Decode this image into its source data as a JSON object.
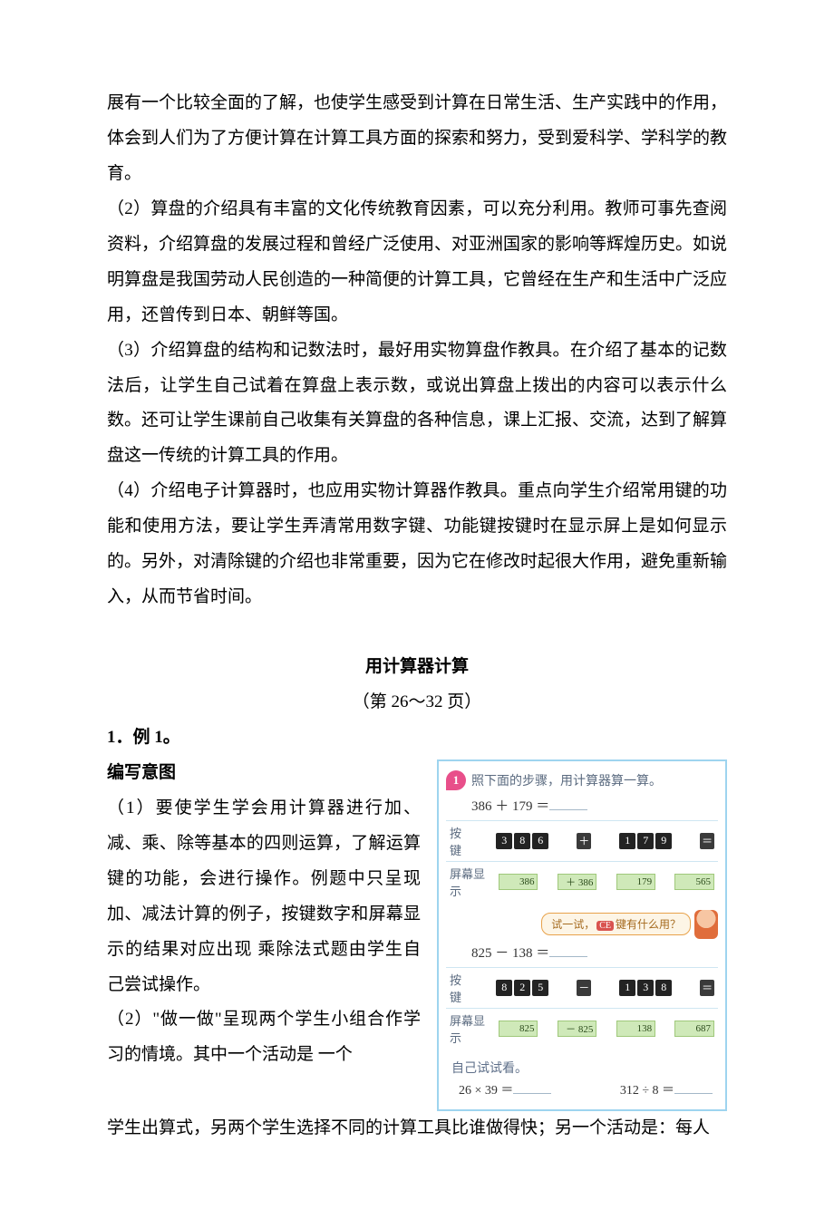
{
  "paragraphs": {
    "p1": "展有一个比较全面的了解，也使学生感受到计算在日常生活、生产实践中的作用，体会到人们为了方便计算在计算工具方面的探索和努力，受到爱科学、学科学的教育。",
    "p2": "（2）算盘的介绍具有丰富的文化传统教育因素，可以充分利用。教师可事先查阅资料，介绍算盘的发展过程和曾经广泛使用、对亚洲国家的影响等辉煌历史。如说明算盘是我国劳动人民创造的一种简便的计算工具，它曾经在生产和生活中广泛应用，还曾传到日本、朝鲜等国。",
    "p3": "（3）介绍算盘的结构和记数法时，最好用实物算盘作教具。在介绍了基本的记数法后，让学生自己试着在算盘上表示数，或说出算盘上拨出的内容可以表示什么数。还可让学生课前自己收集有关算盘的各种信息，课上汇报、交流，达到了解算盘这一传统的计算工具的作用。",
    "p4": "（4）介绍电子计算器时，也应用实物计算器作教具。重点向学生介绍常用键的功能和使用方法，要让学生弄清常用数字键、功能键按键时在显示屏上是如何显示的。另外，对清除键的介绍也非常重要，因为它在修改时起很大作用，避免重新输入，从而节省时间。"
  },
  "section": {
    "title": "用计算器计算",
    "subtitle": "（第 26～32 页）"
  },
  "example": {
    "heading": "1．例 1。",
    "subheading": "编写意图",
    "pA": "（1）要使学生学会用计算器进行加、减、乘、除等基本的四则运算，了解运算键的功能，会进行操作。例题中只呈现加、减法计算的例子，按键数字和屏幕显示的结果对应出现 乘除法式题由学生自己尝试操作。",
    "pB": "（2）\"做一做\"呈现两个学生小组合作学习的情境。其中一个活动是 一个",
    "pC": "学生出算式，另两个学生选择不同的计算工具比谁做得快；另一个活动是：每人"
  },
  "figure": {
    "badge": "1",
    "headText": "照下面的步骤，用计算器算一算。",
    "expr1": "386 ＋ 179 ＝",
    "row1": {
      "label1": "按　键",
      "keys1": [
        "3",
        "8",
        "6"
      ],
      "op1": "＋",
      "keys2": [
        "1",
        "7",
        "9"
      ],
      "op2": "＝",
      "label2": "屏幕显示",
      "displays": [
        "386",
        "＋ 386",
        "179",
        "565"
      ]
    },
    "bubbleText": "试一试，",
    "bubbleKey": "CE",
    "bubbleText2": "键有什么用？",
    "expr2": "825 － 138 ＝",
    "row2": {
      "label1": "按　键",
      "keys1": [
        "8",
        "2",
        "5"
      ],
      "op1": "－",
      "keys2": [
        "1",
        "3",
        "8"
      ],
      "op2": "＝",
      "label2": "屏幕显示",
      "displays": [
        "825",
        "－ 825",
        "138",
        "687"
      ]
    },
    "tryText": "自己试试看。",
    "bottomA": "26 × 39 ＝",
    "bottomB": "312 ÷ 8 ＝"
  },
  "colors": {
    "figureBorder": "#9ed4ef",
    "badgeBg": "#e84f8a",
    "bubbleBorder": "#e8a24a",
    "bubbleBg": "#fdf5e6",
    "displayBg": "#cfe9b9",
    "keyBg": "#232323"
  }
}
